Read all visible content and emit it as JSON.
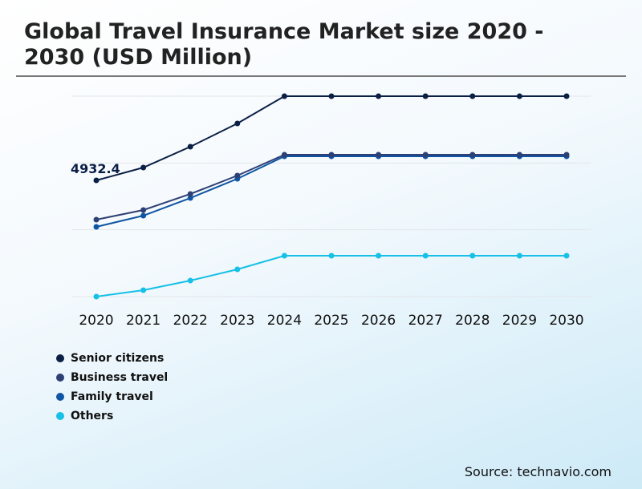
{
  "chart_data": {
    "type": "line",
    "title": "Global Travel Insurance Market size 2020 - 2030 (USD Million)",
    "xlabel": "",
    "ylabel": "",
    "categories": [
      "2020",
      "2021",
      "2022",
      "2023",
      "2024",
      "2025",
      "2026",
      "2027",
      "2028",
      "2029",
      "2030"
    ],
    "ylim": [
      0,
      8505
    ],
    "grid": true,
    "legend_position": "bottom-left",
    "annotation": "4932.4",
    "series": [
      {
        "name": "Senior citizens",
        "color": "#0b1f45",
        "values": [
          4932.4,
          5477,
          6362,
          7348,
          8505,
          8505,
          8505,
          8505,
          8505,
          8505,
          8505
        ]
      },
      {
        "name": "Business travel",
        "color": "#2e3f74",
        "values": [
          3266,
          3674,
          4355,
          5137,
          6022,
          6022,
          6022,
          6022,
          6022,
          6022,
          6022
        ]
      },
      {
        "name": "Family travel",
        "color": "#0f55a3",
        "values": [
          2960,
          3436,
          4184,
          5001,
          5954,
          5954,
          5954,
          5954,
          5954,
          5954,
          5954
        ]
      },
      {
        "name": "Others",
        "color": "#16c0e6",
        "values": [
          0,
          272,
          680,
          1157,
          1735,
          1735,
          1735,
          1735,
          1735,
          1735,
          1735
        ]
      }
    ]
  },
  "source": "Source: technavio.com"
}
